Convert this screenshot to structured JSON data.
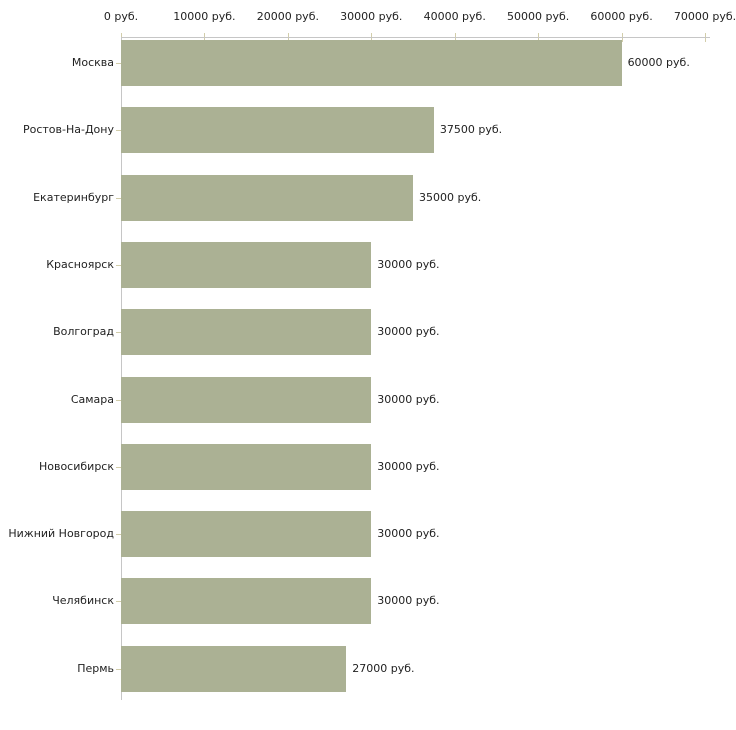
{
  "chart_data": {
    "type": "bar",
    "orientation": "horizontal",
    "title": "",
    "xlabel": "",
    "ylabel": "",
    "unit": "руб.",
    "categories": [
      "Москва",
      "Ростов-На-Дону",
      "Екатеринбург",
      "Красноярск",
      "Волгоград",
      "Самара",
      "Новосибирск",
      "Нижний Новгород",
      "Челябинск",
      "Пермь"
    ],
    "values": [
      60000,
      37500,
      35000,
      30000,
      30000,
      30000,
      30000,
      30000,
      30000,
      27000
    ],
    "value_labels": [
      "60000 руб.",
      "37500 руб.",
      "35000 руб.",
      "30000 руб.",
      "30000 руб.",
      "30000 руб.",
      "30000 руб.",
      "30000 руб.",
      "30000 руб.",
      "27000 руб."
    ],
    "x_tick_values": [
      0,
      10000,
      20000,
      30000,
      40000,
      50000,
      60000,
      70000
    ],
    "x_tick_labels": [
      "0 руб.",
      "10000 руб.",
      "20000 руб.",
      "30000 руб.",
      "40000 руб.",
      "50000 руб.",
      "60000 руб.",
      "70000 руб."
    ],
    "xlim": [
      0,
      70000
    ],
    "grid": false,
    "legend": false,
    "axis_position": "top",
    "colors": {
      "bar": "#abb194",
      "axis_line": "#c6c6c6",
      "tick_mark": "#d2cdaa",
      "text": "#222222",
      "background": "#ffffff"
    }
  }
}
